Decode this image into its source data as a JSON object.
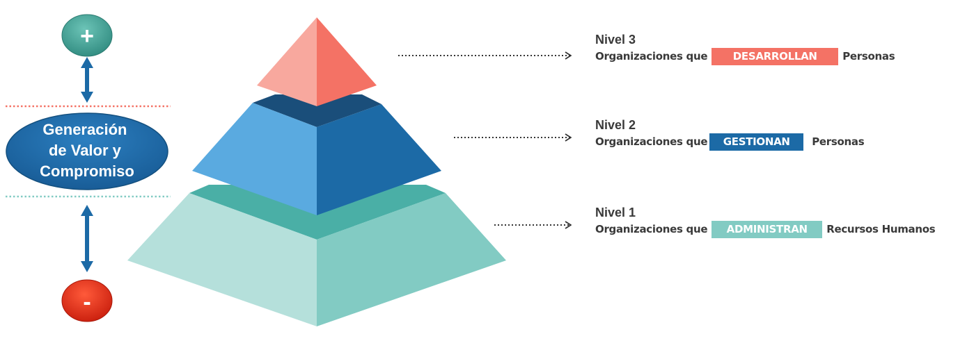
{
  "left_scale": {
    "top_symbol": "+",
    "center_label_lines": [
      "Generación",
      "de Valor y",
      "Compromiso"
    ],
    "bottom_symbol": "-"
  },
  "levels": [
    {
      "title": "Nivel 3",
      "prefix": "Organizaciones que",
      "tag": "DESARROLLAN",
      "suffix": "Personas",
      "color": "#f47265"
    },
    {
      "title": "Nivel 2",
      "prefix": "Organizaciones que",
      "tag": "GESTIONAN",
      "suffix": "Personas",
      "color": "#1c6aa6"
    },
    {
      "title": "Nivel 1",
      "prefix": "Organizaciones que",
      "tag": "ADMINISTRAN",
      "suffix": "Recursos Humanos",
      "color": "#82cbc3"
    }
  ],
  "colors": {
    "plus_circle": "#4aa89c",
    "minus_circle": "#f0301a",
    "center_ellipse": "#1f6fae",
    "arrow": "#1c6aa6",
    "dotted_top": "#f47265",
    "dotted_bottom": "#82cbc3"
  }
}
